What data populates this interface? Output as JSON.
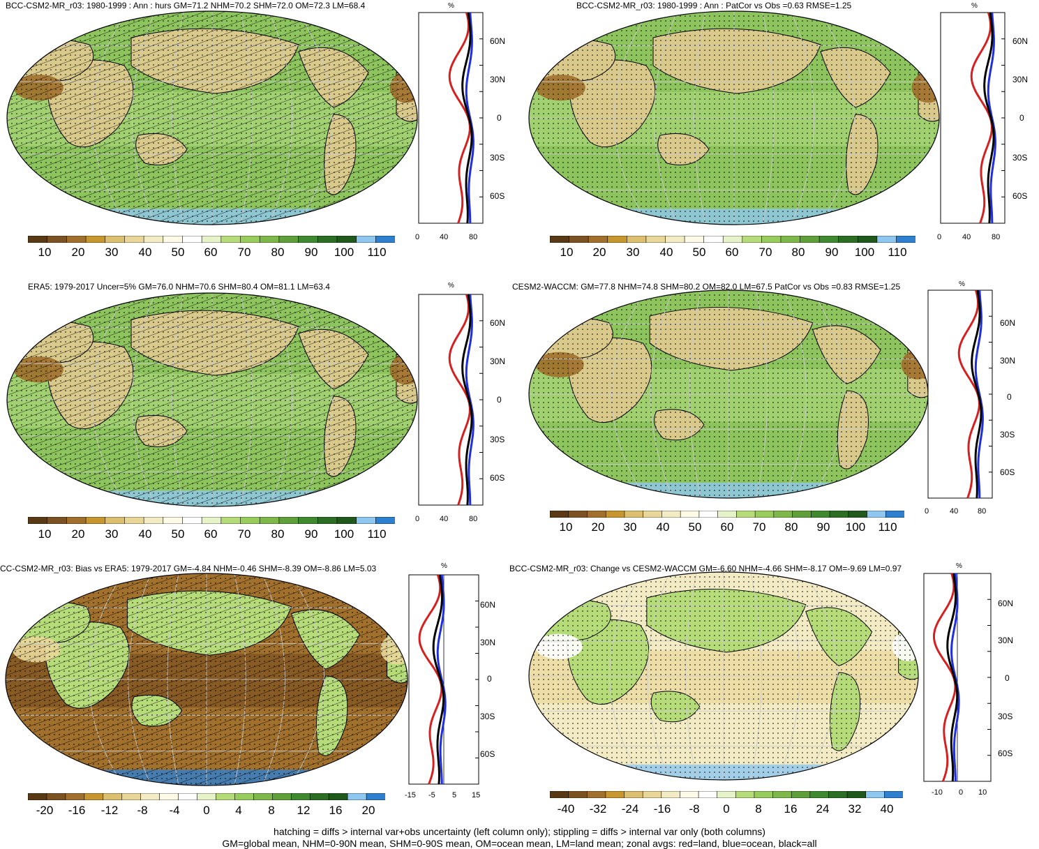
{
  "panels": [
    {
      "title": "BCC-CSM2-MR_r03: 1980-1999 : Ann : hurs GM=71.2 NHM=70.2 SHM=72.0 OM=72.3 LM=68.4",
      "cbar_labels": [
        "10",
        "20",
        "30",
        "40",
        "50",
        "60",
        "70",
        "80",
        "90",
        "100",
        "110"
      ],
      "zonal_unit": "%",
      "zonal_xticks": [
        "0",
        "40",
        "80"
      ],
      "lat_labels": [
        "60N",
        "30N",
        "0",
        "30S",
        "60S"
      ],
      "palette": "hurs",
      "hatch": true
    },
    {
      "title": "BCC-CSM2-MR_r03: 1980-1999 : Ann : PatCor vs Obs =0.63 RMSE=1.25",
      "cbar_labels": [
        "10",
        "20",
        "30",
        "40",
        "50",
        "60",
        "70",
        "80",
        "90",
        "100",
        "110"
      ],
      "zonal_unit": "%",
      "zonal_xticks": [
        "0",
        "40",
        "80"
      ],
      "lat_labels": [
        "60N",
        "30N",
        "0",
        "30S",
        "60S"
      ],
      "palette": "hurs",
      "hatch": false
    },
    {
      "title": "ERA5: 1979-2017 Uncer=5% GM=76.0 NHM=70.6 SHM=80.4 OM=81.1 LM=63.4",
      "cbar_labels": [
        "10",
        "20",
        "30",
        "40",
        "50",
        "60",
        "70",
        "80",
        "90",
        "100",
        "110"
      ],
      "zonal_unit": "%",
      "zonal_xticks": [
        "0",
        "40",
        "80"
      ],
      "lat_labels": [
        "60N",
        "30N",
        "0",
        "30S",
        "60S"
      ],
      "palette": "hurs",
      "hatch": true
    },
    {
      "title": "CESM2-WACCM: GM=77.8 NHM=74.8 SHM=80.2 OM=82.0 LM=67.5 PatCor vs Obs =0.83 RMSE=1.25",
      "cbar_labels": [
        "10",
        "20",
        "30",
        "40",
        "50",
        "60",
        "70",
        "80",
        "90",
        "100",
        "110"
      ],
      "zonal_unit": "%",
      "zonal_xticks": [
        "0",
        "40",
        "80"
      ],
      "lat_labels": [
        "60N",
        "30N",
        "0",
        "30S",
        "60S"
      ],
      "palette": "hurs",
      "hatch": false
    },
    {
      "title": "CC-CSM2-MR_r03: Bias vs ERA5: 1979-2017 GM=-4.84 NHM=-0.46 SHM=-8.39 OM=-8.86 LM=5.03",
      "cbar_labels": [
        "-20",
        "-16",
        "-12",
        "-8",
        "-4",
        "0",
        "4",
        "8",
        "12",
        "16",
        "20"
      ],
      "zonal_unit": "%",
      "zonal_xticks": [
        "-15",
        "-5",
        "5",
        "15"
      ],
      "lat_labels": [
        "60N",
        "30N",
        "0",
        "30S",
        "60S"
      ],
      "palette": "bias",
      "hatch": true
    },
    {
      "title": "BCC-CSM2-MR_r03: Change vs CESM2-WACCM GM=-6.60 NHM=-4.66 SHM=-8.17 OM=-9.69 LM=0.97",
      "cbar_labels": [
        "-40",
        "-32",
        "-24",
        "-16",
        "-8",
        "0",
        "8",
        "16",
        "24",
        "32",
        "40"
      ],
      "zonal_unit": "%",
      "zonal_xticks": [
        "-10",
        "0",
        "10"
      ],
      "lat_labels": [
        "60N",
        "30N",
        "0",
        "30S",
        "60S"
      ],
      "palette": "change",
      "hatch": false
    }
  ],
  "colors": {
    "hurs_scale": [
      "#5a3a14",
      "#7d5222",
      "#a0702c",
      "#c8962e",
      "#dcc070",
      "#e9d79a",
      "#f3ebc4",
      "#fffbe8",
      "#ffffff",
      "#e6f3c8",
      "#b6dc7a",
      "#98cc5c",
      "#7fb84a",
      "#5fa03a",
      "#3f8a2e",
      "#2c6e24",
      "#1f5a1c",
      "#8ec7f0",
      "#2f7fd0"
    ],
    "bias_scale": [
      "#5a3a14",
      "#7d5222",
      "#a0702c",
      "#c8962e",
      "#dcc070",
      "#e9d79a",
      "#f3ebc4",
      "#fffbe8",
      "#ffffff",
      "#e6f3c8",
      "#b6dc7a",
      "#98cc5c",
      "#7fb84a",
      "#5fa03a",
      "#3f8a2e",
      "#2c6e24",
      "#1f5a1c",
      "#8ec7f0",
      "#2f7fd0"
    ],
    "land_line": "#d62020",
    "ocean_line": "#1f2ee0",
    "all_line": "#000000"
  },
  "footer": [
    "hatching = diffs > internal var+obs uncertainty (left column only); stippling = diffs > internal var only (both columns)",
    "GM=global mean, NHM=0-90N mean, SHM=0-90S mean, OM=ocean mean, LM=land mean; zonal avgs: red=land, blue=ocean, black=all"
  ]
}
